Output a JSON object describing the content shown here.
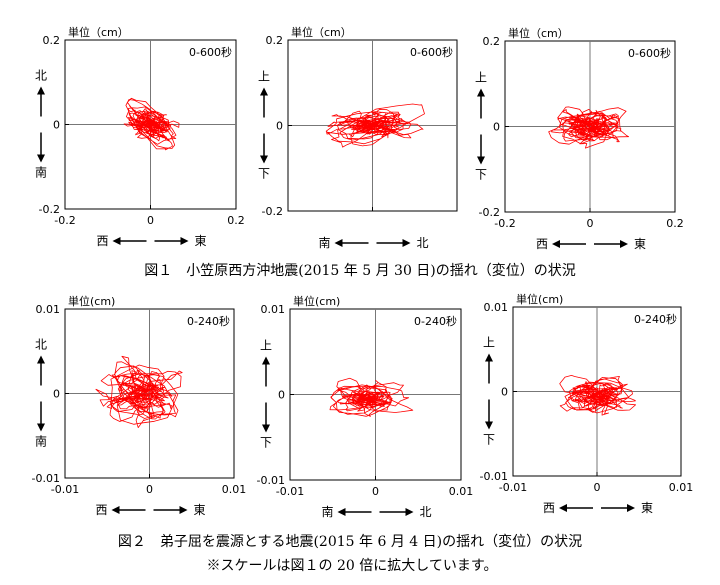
{
  "figures": [
    {
      "caption": "図１　小笠原西方沖地震(2015 年 5 月 30 日)の揺れ（変位）の状況",
      "panels": [
        {
          "unit_label": "単位（cm）",
          "time_label": "0-600秒",
          "y_top": "北",
          "y_bottom": "南",
          "x_left": "西",
          "x_right": "東",
          "xticks": [
            "-0.2",
            "0",
            "0.2"
          ],
          "yticks": [
            "0.2",
            "0",
            "-0.2"
          ]
        },
        {
          "unit_label": "単位（cm）",
          "time_label": "0-600秒",
          "y_top": "上",
          "y_bottom": "下",
          "x_left": "南",
          "x_right": "北",
          "xticks": [],
          "yticks": [
            "0.2",
            "0",
            "-0.2"
          ]
        },
        {
          "unit_label": "単位（cm）",
          "time_label": "0-600秒",
          "y_top": "上",
          "y_bottom": "下",
          "x_left": "西",
          "x_right": "東",
          "xticks": [
            "-0.2",
            "0",
            "0.2"
          ],
          "yticks": [
            "0.2",
            "0",
            "-0.2"
          ]
        }
      ]
    },
    {
      "caption": "図２　弟子屈を震源とする地震(2015 年 6 月 4 日)の揺れ（変位）の状況",
      "note": "※スケールは図１の 20 倍に拡大しています。",
      "panels": [
        {
          "unit_label": "単位(cm)",
          "time_label": "0-240秒",
          "y_top": "北",
          "y_bottom": "南",
          "x_left": "西",
          "x_right": "東",
          "xticks": [
            "-0.01",
            "0",
            "0.01"
          ],
          "yticks": [
            "0.01",
            "0",
            "-0.01"
          ]
        },
        {
          "unit_label": "単位(cm)",
          "time_label": "0-240秒",
          "y_top": "上",
          "y_bottom": "下",
          "x_left": "南",
          "x_right": "北",
          "xticks": [
            "-0.01",
            "0",
            "0.01"
          ],
          "yticks": [
            "0.01",
            "0",
            "-0.01"
          ]
        },
        {
          "unit_label": "単位(cm)",
          "time_label": "0-240秒",
          "y_top": "上",
          "y_bottom": "下",
          "x_left": "西",
          "x_right": "東",
          "xticks": [
            "-0.01",
            "0",
            "0.01"
          ],
          "yticks": [
            "0.01",
            "0",
            "-0.01"
          ]
        }
      ]
    }
  ],
  "chart_data": [
    {
      "type": "line",
      "xlim": [
        -0.2,
        0.2
      ],
      "ylim": [
        -0.2,
        0.2
      ],
      "color": "#ff0000",
      "center": [
        0.0,
        0.0
      ],
      "spread": [
        0.04,
        0.07
      ],
      "tilt_deg": 60
    },
    {
      "type": "line",
      "xlim": [
        -0.2,
        0.2
      ],
      "ylim": [
        -0.2,
        0.2
      ],
      "color": "#ff0000",
      "center": [
        0.0,
        0.0
      ],
      "spread": [
        0.08,
        0.03
      ],
      "tilt_deg": 5
    },
    {
      "type": "line",
      "xlim": [
        -0.2,
        0.2
      ],
      "ylim": [
        -0.2,
        0.2
      ],
      "color": "#ff0000",
      "center": [
        0.0,
        0.0
      ],
      "spread": [
        0.06,
        0.03
      ],
      "tilt_deg": 0
    },
    {
      "type": "line",
      "xlim": [
        -0.01,
        0.01
      ],
      "ylim": [
        -0.01,
        0.01
      ],
      "color": "#ff0000",
      "center": [
        -0.001,
        0.0
      ],
      "spread": [
        0.003,
        0.004
      ],
      "tilt_deg": 80
    },
    {
      "type": "line",
      "xlim": [
        -0.01,
        0.01
      ],
      "ylim": [
        -0.01,
        0.01
      ],
      "color": "#ff0000",
      "center": [
        -0.001,
        -0.0005
      ],
      "spread": [
        0.004,
        0.0018
      ],
      "tilt_deg": 0
    },
    {
      "type": "line",
      "xlim": [
        -0.01,
        0.01
      ],
      "ylim": [
        -0.01,
        0.01
      ],
      "color": "#ff0000",
      "center": [
        0.0,
        -0.0005
      ],
      "spread": [
        0.0035,
        0.0018
      ],
      "tilt_deg": 0
    }
  ]
}
